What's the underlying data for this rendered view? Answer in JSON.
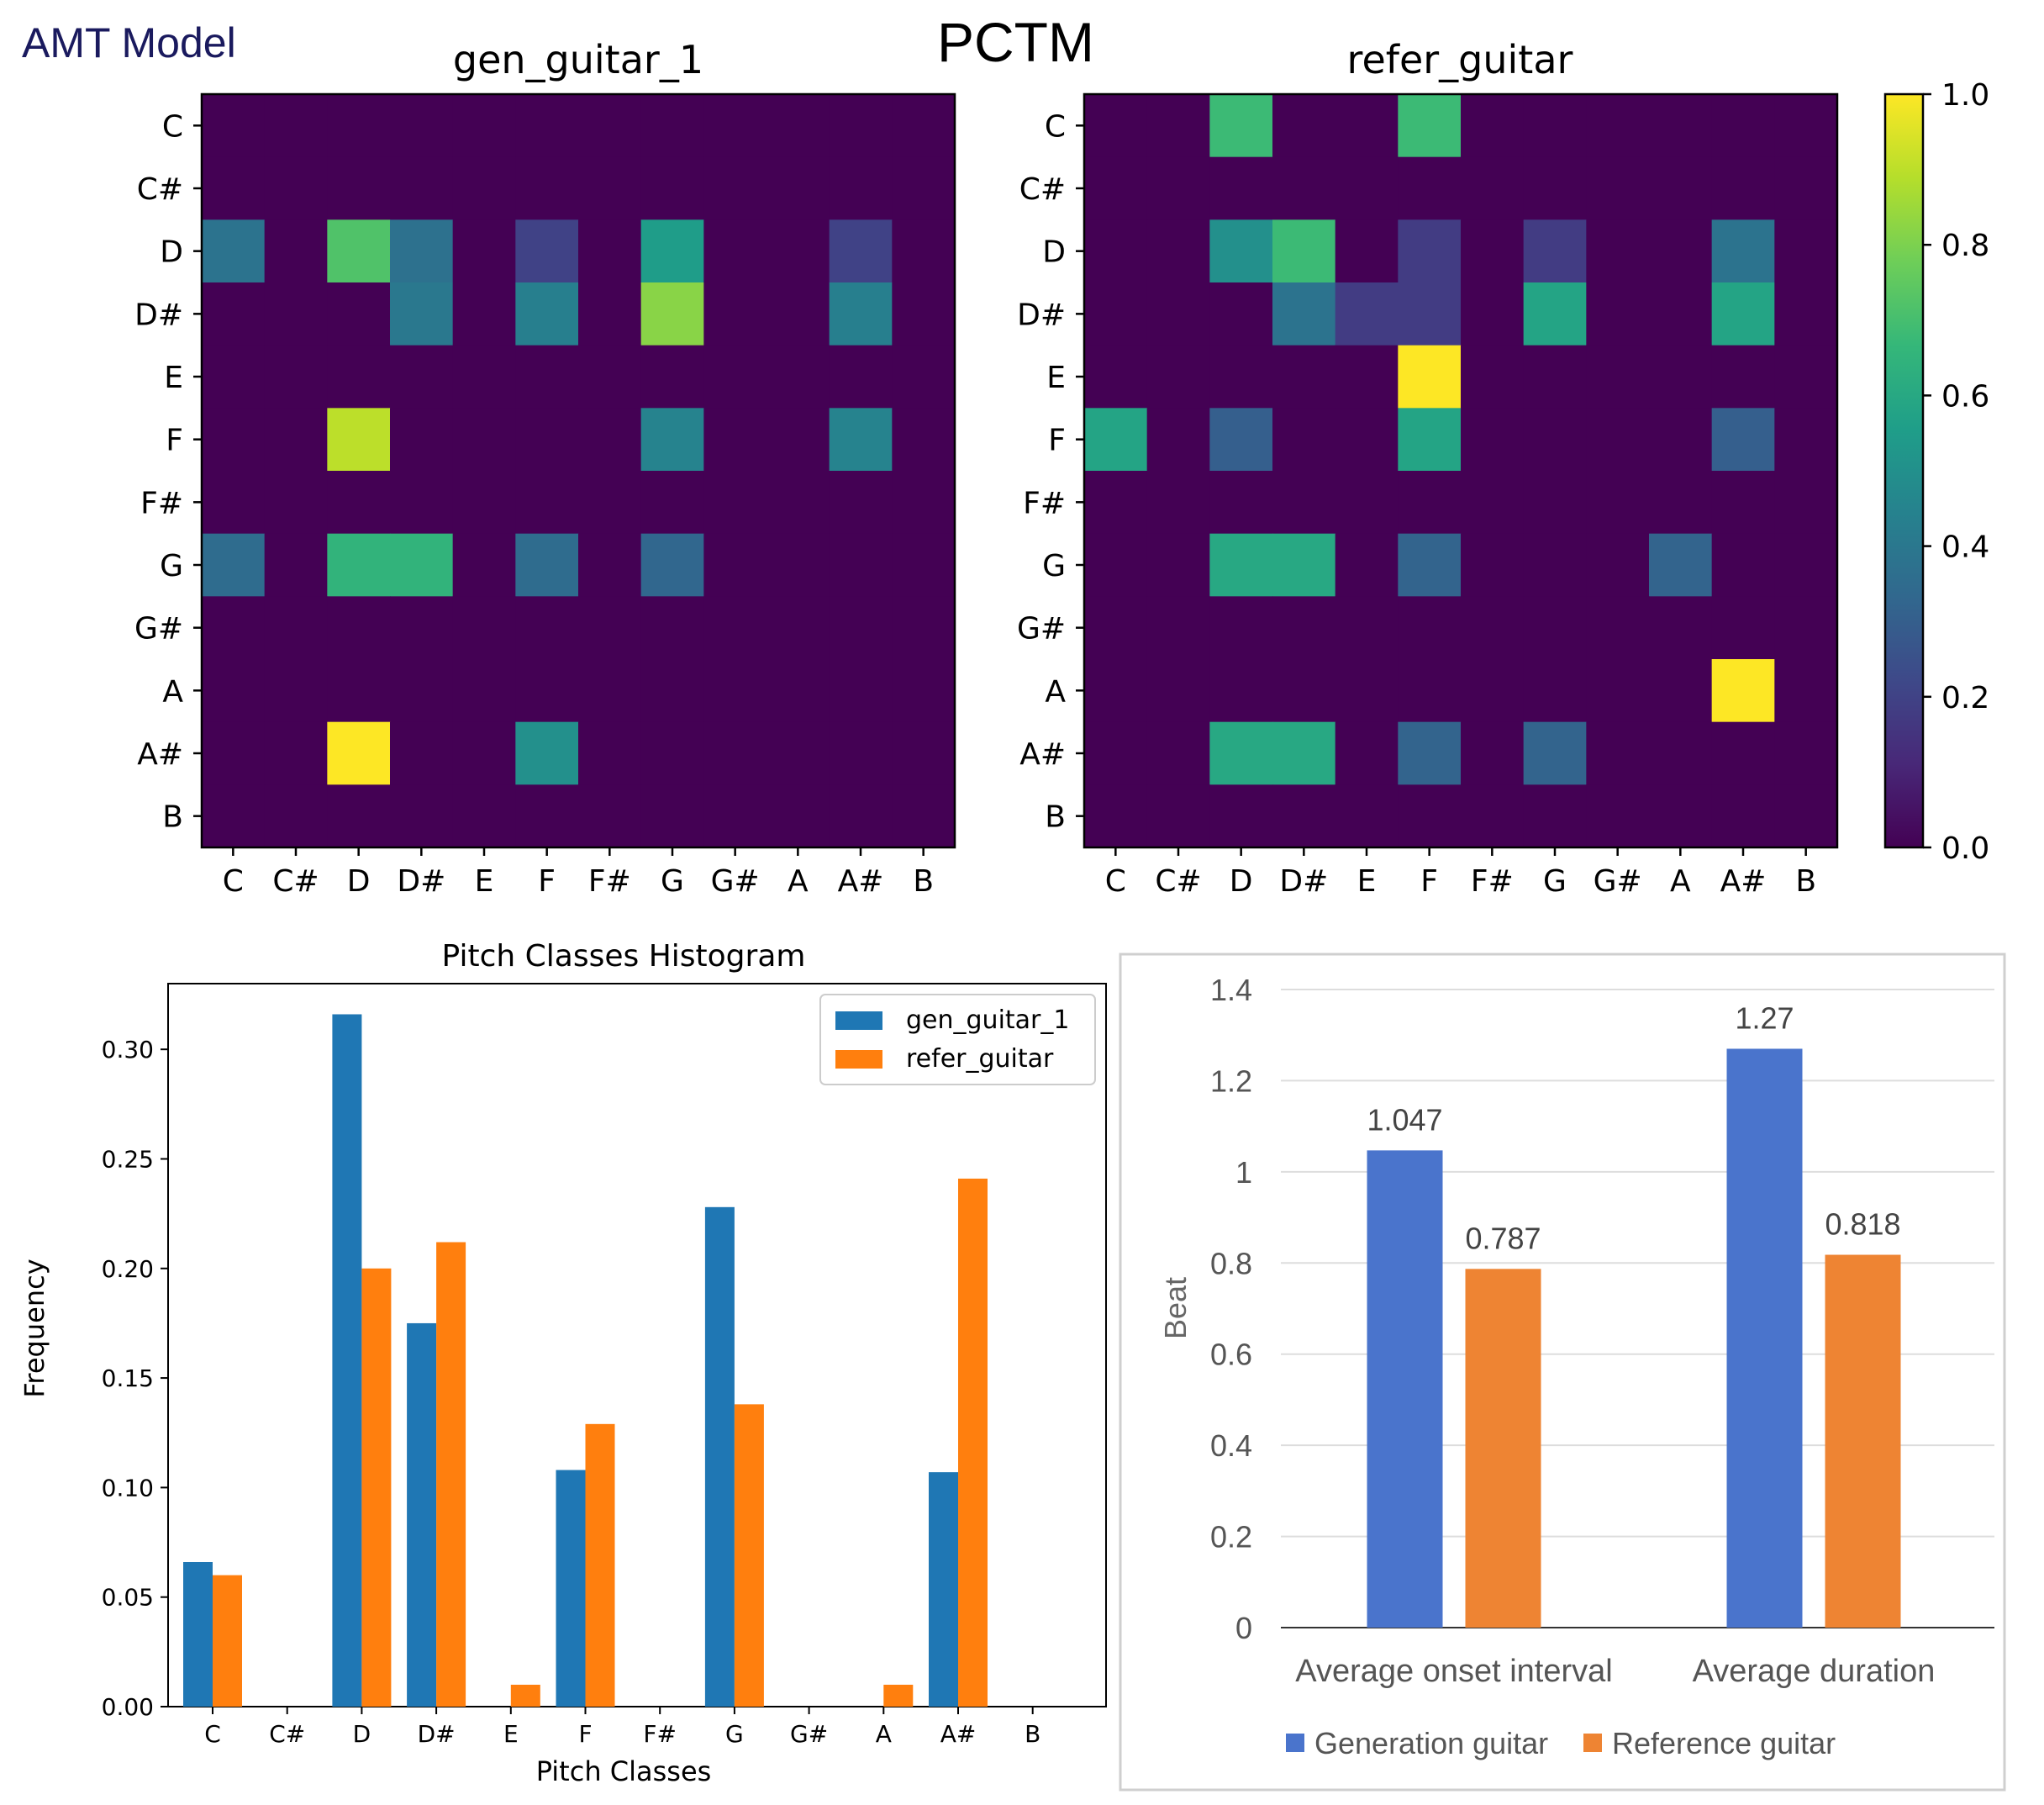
{
  "header": {
    "left_label": "AMT Model",
    "title": "PCTM"
  },
  "colors": {
    "viridis": [
      "#440154",
      "#482878",
      "#3e4989",
      "#31688e",
      "#26828e",
      "#1f9e89",
      "#35b779",
      "#6ece58",
      "#b5de2b",
      "#fde725"
    ],
    "hist_gen": "#1f77b4",
    "hist_ref": "#ff7f0e",
    "beat_gen": "#4a74cc",
    "beat_ref": "#ee8433"
  },
  "chart_data": [
    {
      "type": "heatmap",
      "title": "gen_guitar_1",
      "rows": [
        "C",
        "C#",
        "D",
        "D#",
        "E",
        "F",
        "F#",
        "G",
        "G#",
        "A",
        "A#",
        "B"
      ],
      "cols": [
        "C",
        "C#",
        "D",
        "D#",
        "E",
        "F",
        "F#",
        "G",
        "G#",
        "A",
        "A#",
        "B"
      ],
      "values": [
        [
          0,
          0,
          0,
          0,
          0,
          0,
          0,
          0,
          0,
          0,
          0,
          0
        ],
        [
          0,
          0,
          0,
          0,
          0,
          0,
          0,
          0,
          0,
          0,
          0,
          0
        ],
        [
          0.38,
          0,
          0.72,
          0.37,
          0,
          0.2,
          0,
          0.55,
          0,
          0,
          0.2,
          0
        ],
        [
          0,
          0,
          0,
          0.4,
          0,
          0.43,
          0,
          0.82,
          0,
          0,
          0.43,
          0
        ],
        [
          0,
          0,
          0,
          0,
          0,
          0,
          0,
          0,
          0,
          0,
          0,
          0
        ],
        [
          0,
          0,
          0.9,
          0,
          0,
          0,
          0,
          0.45,
          0,
          0,
          0.45,
          0
        ],
        [
          0,
          0,
          0,
          0,
          0,
          0,
          0,
          0,
          0,
          0,
          0,
          0
        ],
        [
          0.35,
          0,
          0.65,
          0.65,
          0,
          0.35,
          0,
          0.33,
          0,
          0,
          0,
          0
        ],
        [
          0,
          0,
          0,
          0,
          0,
          0,
          0,
          0,
          0,
          0,
          0,
          0
        ],
        [
          0,
          0,
          0,
          0,
          0,
          0,
          0,
          0,
          0,
          0,
          0,
          0
        ],
        [
          0,
          0,
          1.0,
          0,
          0,
          0.5,
          0,
          0,
          0,
          0,
          0,
          0
        ],
        [
          0,
          0,
          0,
          0,
          0,
          0,
          0,
          0,
          0,
          0,
          0,
          0
        ]
      ],
      "vmin": 0,
      "vmax": 1
    },
    {
      "type": "heatmap",
      "title": "refer_guitar",
      "rows": [
        "C",
        "C#",
        "D",
        "D#",
        "E",
        "F",
        "F#",
        "G",
        "G#",
        "A",
        "A#",
        "B"
      ],
      "cols": [
        "C",
        "C#",
        "D",
        "D#",
        "E",
        "F",
        "F#",
        "G",
        "G#",
        "A",
        "A#",
        "B"
      ],
      "values": [
        [
          0,
          0,
          0.68,
          0,
          0,
          0.68,
          0,
          0,
          0,
          0,
          0,
          0
        ],
        [
          0,
          0,
          0,
          0,
          0,
          0,
          0,
          0,
          0,
          0,
          0,
          0
        ],
        [
          0,
          0,
          0.5,
          0.68,
          0,
          0.18,
          0,
          0.18,
          0,
          0,
          0.38,
          0
        ],
        [
          0,
          0,
          0,
          0.38,
          0.18,
          0.18,
          0,
          0.58,
          0,
          0,
          0.58,
          0
        ],
        [
          0,
          0,
          0,
          0,
          0,
          1.0,
          0,
          0,
          0,
          0,
          0,
          0
        ],
        [
          0.58,
          0,
          0.3,
          0,
          0,
          0.58,
          0,
          0,
          0,
          0,
          0.3,
          0
        ],
        [
          0,
          0,
          0,
          0,
          0,
          0,
          0,
          0,
          0,
          0,
          0,
          0
        ],
        [
          0,
          0,
          0.6,
          0.6,
          0,
          0.32,
          0,
          0,
          0,
          0.32,
          0,
          0
        ],
        [
          0,
          0,
          0,
          0,
          0,
          0,
          0,
          0,
          0,
          0,
          0,
          0
        ],
        [
          0,
          0,
          0,
          0,
          0,
          0,
          0,
          0,
          0,
          0,
          1.0,
          0
        ],
        [
          0,
          0,
          0.6,
          0.6,
          0,
          0.32,
          0,
          0.32,
          0,
          0,
          0,
          0
        ],
        [
          0,
          0,
          0,
          0,
          0,
          0,
          0,
          0,
          0,
          0,
          0,
          0
        ]
      ],
      "vmin": 0,
      "vmax": 1,
      "colorbar_ticks": [
        "0.0",
        "0.2",
        "0.4",
        "0.6",
        "0.8",
        "1.0"
      ]
    },
    {
      "type": "bar",
      "title": "Pitch Classes Histogram",
      "xlabel": "Pitch Classes",
      "ylabel": "Frequency",
      "categories": [
        "C",
        "C#",
        "D",
        "D#",
        "E",
        "F",
        "F#",
        "G",
        "G#",
        "A",
        "A#",
        "B"
      ],
      "series": [
        {
          "name": "gen_guitar_1",
          "values": [
            0.066,
            0,
            0.316,
            0.175,
            0,
            0.108,
            0,
            0.228,
            0,
            0,
            0.107,
            0
          ]
        },
        {
          "name": "refer_guitar",
          "values": [
            0.06,
            0,
            0.2,
            0.212,
            0.01,
            0.129,
            0,
            0.138,
            0,
            0.01,
            0.241,
            0
          ]
        }
      ],
      "ylim": [
        0,
        0.33
      ],
      "yticks": [
        "0.00",
        "0.05",
        "0.10",
        "0.15",
        "0.20",
        "0.25",
        "0.30"
      ],
      "legend": "top-right"
    },
    {
      "type": "bar",
      "title": "",
      "ylabel": "Beat",
      "categories": [
        "Average onset interval",
        "Average duration"
      ],
      "series": [
        {
          "name": "Generation guitar",
          "values": [
            1.047,
            1.27
          ],
          "labels": [
            "1.047",
            "1.27"
          ]
        },
        {
          "name": "Reference guitar",
          "values": [
            0.787,
            0.818
          ],
          "labels": [
            "0.787",
            "0.818"
          ]
        }
      ],
      "ylim": [
        0,
        1.4
      ],
      "yticks": [
        "0",
        "0.2",
        "0.4",
        "0.6",
        "0.8",
        "1",
        "1.2",
        "1.4"
      ],
      "legend": "bottom"
    }
  ]
}
